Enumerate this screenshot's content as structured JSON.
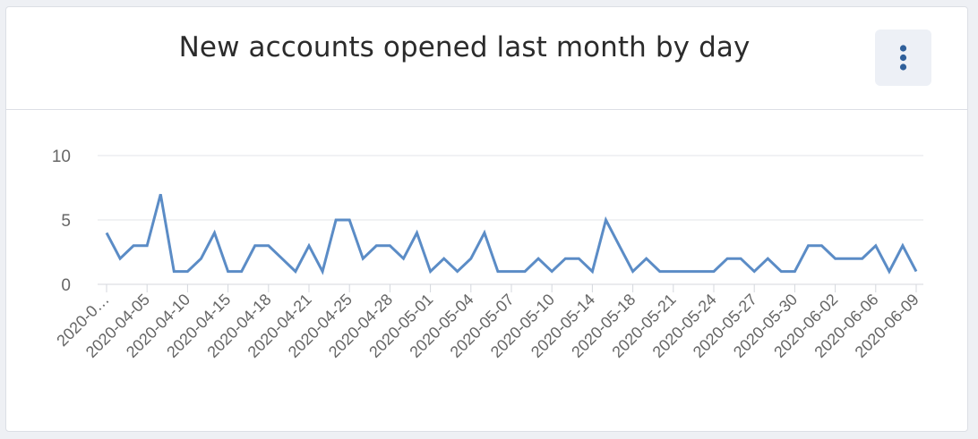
{
  "card": {
    "title": "New accounts opened last month by day",
    "menu_icon": "vertical-ellipsis-icon"
  },
  "colors": {
    "line": "#5b8cc6",
    "grid": "#e3e5ea",
    "axis_text": "#666666",
    "menu_bg": "#edf0f6",
    "menu_dots": "#2f5f9a"
  },
  "chart_data": {
    "type": "line",
    "title": "New accounts opened last month by day",
    "xlabel": "",
    "ylabel": "",
    "ylim": [
      0,
      10
    ],
    "yticks": [
      0,
      5,
      10
    ],
    "grid": true,
    "legend": "none",
    "series": [
      {
        "values": [
          4,
          2,
          3,
          3,
          7,
          1,
          1,
          2,
          4,
          1,
          1,
          3,
          3,
          2,
          1,
          3,
          1,
          5,
          5,
          2,
          3,
          3,
          2,
          4,
          1,
          2,
          1,
          2,
          4,
          1,
          1,
          1,
          2,
          1,
          2,
          2,
          1,
          5,
          3,
          1,
          2,
          1,
          1,
          1,
          1,
          1,
          2,
          2,
          1,
          2,
          1,
          1,
          3,
          3,
          2,
          2,
          2,
          3,
          1,
          3,
          1
        ]
      }
    ],
    "tick_labels": [
      "2020-0…",
      "2020-04-05",
      "2020-04-10",
      "2020-04-15",
      "2020-04-18",
      "2020-04-21",
      "2020-04-25",
      "2020-04-28",
      "2020-05-01",
      "2020-05-04",
      "2020-05-07",
      "2020-05-10",
      "2020-05-14",
      "2020-05-18",
      "2020-05-21",
      "2020-05-24",
      "2020-05-27",
      "2020-05-30",
      "2020-06-02",
      "2020-06-06",
      "2020-06-09"
    ],
    "tick_indices": [
      0,
      3,
      6,
      9,
      12,
      15,
      18,
      21,
      24,
      27,
      30,
      33,
      36,
      39,
      42,
      45,
      48,
      51,
      54,
      57,
      60
    ]
  }
}
